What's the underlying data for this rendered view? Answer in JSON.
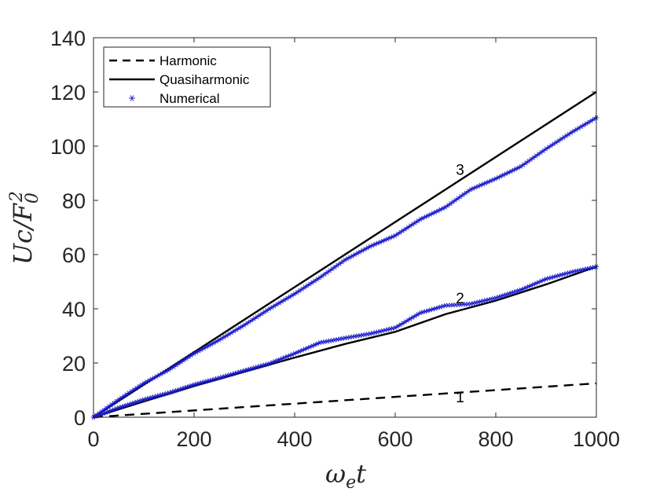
{
  "chart_data": {
    "type": "line",
    "x_range": [
      0,
      1000
    ],
    "ylim": [
      0,
      140
    ],
    "xticks": [
      "0",
      "200",
      "400",
      "600",
      "800",
      "1000"
    ],
    "yticks": [
      "0",
      "20",
      "40",
      "60",
      "80",
      "100",
      "120",
      "140"
    ],
    "xlabel": {
      "base": "ω",
      "sub": "e",
      "tail": "t"
    },
    "ylabel": {
      "base": "Uc/F",
      "sub": "0",
      "sup": "2"
    },
    "legend": {
      "position": "top-left",
      "entries": [
        {
          "key": "harmonic",
          "label": "Harmonic",
          "style": "dashed"
        },
        {
          "key": "quasi",
          "label": "Quasiharmonic",
          "style": "solid"
        },
        {
          "key": "numerical",
          "label": "Numerical",
          "style": "marker"
        }
      ]
    },
    "series": [
      {
        "key": "harmonic",
        "style": "dashed",
        "color": "#000000",
        "x": [
          0,
          1000
        ],
        "y": [
          0,
          12.5
        ]
      },
      {
        "key": "quasi_2",
        "style": "solid",
        "color": "#000000",
        "x": [
          0,
          100,
          200,
          300,
          400,
          500,
          600,
          700,
          800,
          900,
          1000
        ],
        "y": [
          0,
          5.8,
          11.5,
          16.8,
          22,
          27,
          31.5,
          38,
          43,
          49,
          55.5
        ]
      },
      {
        "key": "quasi_3",
        "style": "solid",
        "color": "#000000",
        "x": [
          0,
          1000
        ],
        "y": [
          0,
          120
        ]
      },
      {
        "key": "numerical_2",
        "style": "marker",
        "color": "#1a1acc",
        "x": [
          0,
          50,
          100,
          150,
          200,
          250,
          300,
          350,
          400,
          450,
          500,
          550,
          600,
          650,
          700,
          750,
          800,
          850,
          900,
          950,
          1000
        ],
        "y": [
          0,
          3.5,
          6.5,
          9,
          12,
          14.5,
          17.2,
          19.8,
          23.5,
          27.5,
          29.2,
          30.8,
          33,
          38.5,
          41.2,
          41.8,
          44,
          47,
          51,
          53.5,
          55.5
        ]
      },
      {
        "key": "numerical_3",
        "style": "marker",
        "color": "#1a1acc",
        "x": [
          0,
          50,
          100,
          150,
          200,
          250,
          300,
          350,
          400,
          450,
          500,
          550,
          600,
          650,
          700,
          750,
          800,
          850,
          900,
          950,
          1000
        ],
        "y": [
          0,
          6.5,
          12.5,
          17.5,
          23.5,
          28.5,
          34,
          40,
          45.5,
          51.5,
          58,
          63,
          67,
          73,
          77.5,
          84,
          88,
          92.5,
          99,
          105,
          110.5
        ]
      }
    ],
    "curve_labels": [
      {
        "text": "1",
        "x": 730,
        "y": 7.5
      },
      {
        "text": "2",
        "x": 730,
        "y": 44
      },
      {
        "text": "3",
        "x": 730,
        "y": 91.5
      }
    ]
  }
}
